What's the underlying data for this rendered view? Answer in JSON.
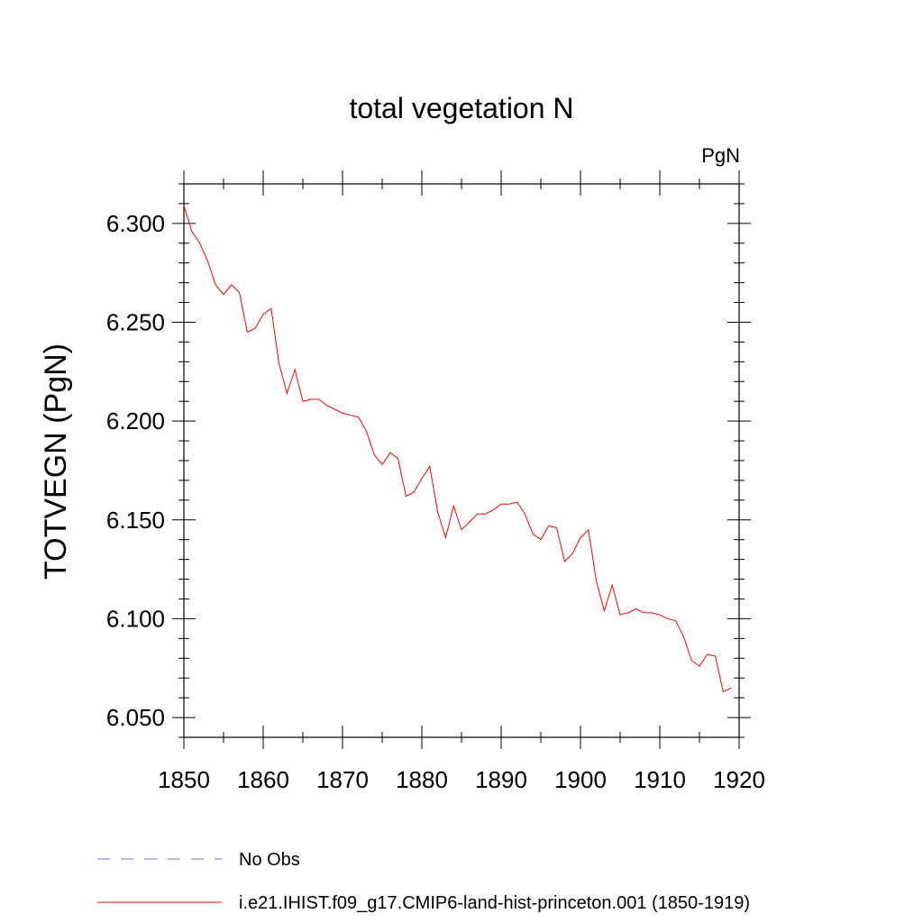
{
  "chart_data": {
    "type": "line",
    "title": "total vegetation N",
    "units_label": "PgN",
    "xlabel": "",
    "ylabel": "TOTVEGN  (PgN)",
    "xlim": [
      1850,
      1920
    ],
    "ylim": [
      6.04,
      6.32
    ],
    "xticks": [
      1850,
      1860,
      1870,
      1880,
      1890,
      1900,
      1910,
      1920
    ],
    "xtick_labels": [
      "1850",
      "1860",
      "1870",
      "1880",
      "1890",
      "1900",
      "1910",
      "1920"
    ],
    "yticks": [
      6.05,
      6.1,
      6.15,
      6.2,
      6.25,
      6.3
    ],
    "ytick_labels": [
      "6.050",
      "6.100",
      "6.150",
      "6.200",
      "6.250",
      "6.300"
    ],
    "grid": false,
    "legend_position": "bottom-left, below plot",
    "series": [
      {
        "name": "i.e21.IHIST.f09_g17.CMIP6-land-hist-princeton.001 (1850-1919)",
        "color": "#ff0000",
        "style": "solid",
        "x": [
          1850,
          1851,
          1852,
          1853,
          1854,
          1855,
          1856,
          1857,
          1858,
          1859,
          1860,
          1861,
          1862,
          1863,
          1864,
          1865,
          1866,
          1867,
          1868,
          1869,
          1870,
          1871,
          1872,
          1873,
          1874,
          1875,
          1876,
          1877,
          1878,
          1879,
          1880,
          1881,
          1882,
          1883,
          1884,
          1885,
          1886,
          1887,
          1888,
          1889,
          1890,
          1891,
          1892,
          1893,
          1894,
          1895,
          1896,
          1897,
          1898,
          1899,
          1900,
          1901,
          1902,
          1903,
          1904,
          1905,
          1906,
          1907,
          1908,
          1909,
          1910,
          1911,
          1912,
          1913,
          1914,
          1915,
          1916,
          1917,
          1918,
          1919
        ],
        "values": [
          6.309,
          6.296,
          6.29,
          6.281,
          6.269,
          6.264,
          6.269,
          6.265,
          6.245,
          6.247,
          6.254,
          6.257,
          6.229,
          6.214,
          6.226,
          6.21,
          6.211,
          6.211,
          6.208,
          6.206,
          6.204,
          6.203,
          6.202,
          6.195,
          6.183,
          6.178,
          6.184,
          6.181,
          6.162,
          6.164,
          6.171,
          6.177,
          6.154,
          6.141,
          6.157,
          6.145,
          6.149,
          6.153,
          6.153,
          6.155,
          6.158,
          6.158,
          6.159,
          6.153,
          6.143,
          6.14,
          6.147,
          6.146,
          6.129,
          6.133,
          6.141,
          6.145,
          6.119,
          6.104,
          6.117,
          6.102,
          6.103,
          6.105,
          6.103,
          6.103,
          6.102,
          6.1,
          6.099,
          6.091,
          6.079,
          6.076,
          6.082,
          6.081,
          6.063,
          6.065
        ]
      }
    ],
    "legend": [
      {
        "label": "No Obs",
        "color": "#7b68c8",
        "style": "dashed"
      },
      {
        "label": "i.e21.IHIST.f09_g17.CMIP6-land-hist-princeton.001 (1850-1919)",
        "color": "#ff0000",
        "style": "solid"
      }
    ]
  }
}
